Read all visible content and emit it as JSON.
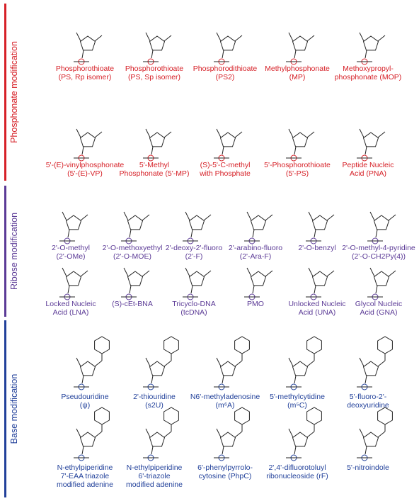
{
  "sections": [
    {
      "title": "Phosphonate modification",
      "color": "#d62027",
      "rows": [
        [
          [
            "Phosphorothioate",
            "(PS, Rp isomer)"
          ],
          [
            "Phosphorothioate",
            "(PS, Sp isomer)"
          ],
          [
            "Phosphorodithioate",
            "(PS2)"
          ],
          [
            "Methylphosphonate",
            "(MP)"
          ],
          [
            "Methoxypropyl-",
            "phosphonate (MOP)"
          ]
        ],
        [
          [
            "5'-(E)-vinylphosphonate",
            "(5'-(E)-VP)"
          ],
          [
            "5'-Methyl",
            "Phosphonate (5'-MP)"
          ],
          [
            "(S)-5'-C-methyl",
            "with Phosphate"
          ],
          [
            "5'-Phosphorothioate",
            "(5'-PS)"
          ],
          [
            "Peptide Nucleic",
            "Acid (PNA)"
          ]
        ]
      ]
    },
    {
      "title": "Ribose modification",
      "color": "#5b3a96",
      "rows": [
        [
          [
            "2'-O-methyl",
            "(2'-OMe)"
          ],
          [
            "2'-O-methoxyethyl",
            "(2'-O-MOE)"
          ],
          [
            "2'-deoxy-2'-fluoro",
            "(2'-F)"
          ],
          [
            "2'-arabino-fluoro",
            "(2'-Ara-F)"
          ],
          [
            "2'-O-benzyl"
          ],
          [
            "2'-O-methyl-4-pyridine",
            "(2'-O-CH2Py(4))"
          ]
        ],
        [
          [
            "Locked Nucleic",
            "Acid (LNA)"
          ],
          [
            "(S)-cEt-BNA"
          ],
          [
            "Tricyclo-DNA",
            "(tcDNA)"
          ],
          [
            "PMO"
          ],
          [
            "Unlocked Nucleic",
            "Acid (UNA)"
          ],
          [
            "Glycol Nucleic",
            "Acid (GNA)"
          ]
        ]
      ]
    },
    {
      "title": "Base modification",
      "color": "#21409a",
      "rows": [
        [
          [
            "Pseudouridine",
            "(ψ)"
          ],
          [
            "2'-thiouridine",
            "(s2U)"
          ],
          [
            "N6'-methyladenosine",
            "(m⁶A)"
          ],
          [
            "5'-methylcytidine",
            "(m⁵C)"
          ],
          [
            "5'-fluoro-2'-",
            "deoxyuridine"
          ]
        ],
        [
          [
            "N-ethylpiperidine",
            "7'-EAA triazole",
            "modified adenine"
          ],
          [
            "N-ethylpiperidine",
            "6'-triazole",
            "modified adenine"
          ],
          [
            "6'-phenylpyrrolo-",
            "cytosine (PhpC)"
          ],
          [
            "2',4'-difluorotoluyl",
            "ribonucleoside (rF)"
          ],
          [
            "5'-nitroindole"
          ]
        ]
      ]
    }
  ]
}
